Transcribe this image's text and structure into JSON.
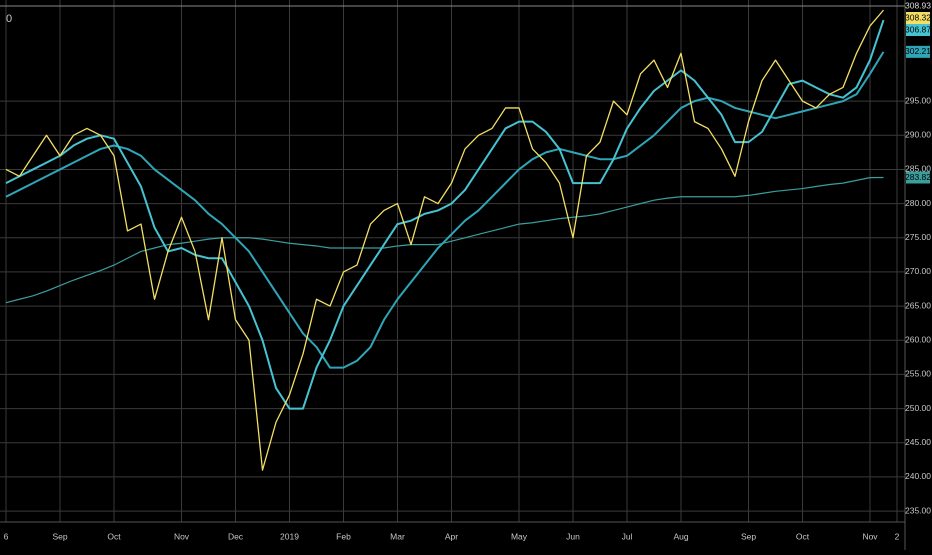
{
  "chart_data": {
    "type": "line",
    "corner_label": "0",
    "background": "#000000",
    "grid": true,
    "grid_color": "#3a3a3a",
    "categories": [
      "6",
      null,
      null,
      null,
      "Sep",
      null,
      null,
      null,
      "Oct",
      null,
      null,
      null,
      null,
      "Nov",
      null,
      null,
      null,
      "Dec",
      null,
      null,
      null,
      "2019",
      null,
      null,
      null,
      "Feb",
      null,
      null,
      null,
      "Mar",
      null,
      null,
      null,
      "Apr",
      null,
      null,
      null,
      null,
      "May",
      null,
      null,
      null,
      "Jun",
      null,
      null,
      null,
      "Jul",
      null,
      null,
      null,
      "Aug",
      null,
      null,
      null,
      null,
      "Sep",
      null,
      null,
      null,
      "Oct",
      null,
      null,
      null,
      null,
      "Nov",
      null,
      "2"
    ],
    "ylim": [
      233.4,
      309.8
    ],
    "yticks": [
      {
        "value": 235,
        "label": "235.00"
      },
      {
        "value": 240,
        "label": "240.00"
      },
      {
        "value": 245,
        "label": "245.00"
      },
      {
        "value": 250,
        "label": "250.00"
      },
      {
        "value": 255,
        "label": "255.00"
      },
      {
        "value": 260,
        "label": "260.00"
      },
      {
        "value": 265,
        "label": "265.00"
      },
      {
        "value": 270,
        "label": "270.00"
      },
      {
        "value": 275,
        "label": "275.00"
      },
      {
        "value": 280,
        "label": "280.00"
      },
      {
        "value": 285,
        "label": "285.00"
      },
      {
        "value": 290,
        "label": "290.00"
      },
      {
        "value": 295,
        "label": "295.00"
      }
    ],
    "series": [
      {
        "color": "#3b9e9c",
        "width": 1.2,
        "values": [
          265.5,
          266,
          266.5,
          267.2,
          268,
          268.8,
          269.5,
          270.2,
          271,
          272,
          273,
          273.5,
          274,
          274.2,
          274.5,
          274.8,
          275,
          275,
          275,
          274.8,
          274.5,
          274.2,
          274,
          273.8,
          273.5,
          273.5,
          273.5,
          273.5,
          273.5,
          273.8,
          274,
          274,
          274,
          274.5,
          275,
          275.5,
          276,
          276.5,
          277,
          277.2,
          277.5,
          277.8,
          278,
          278.2,
          278.5,
          279,
          279.5,
          280,
          280.5,
          280.8,
          281,
          281,
          281,
          281,
          281,
          281.2,
          281.5,
          281.8,
          282,
          282.2,
          282.5,
          282.8,
          283,
          283.4,
          283.8,
          283.82,
          null
        ]
      },
      {
        "color": "#2fa6b8",
        "width": 2,
        "values": [
          281,
          282,
          283,
          284,
          285,
          286,
          287,
          288,
          288.5,
          288,
          287,
          285,
          283.5,
          282,
          280.5,
          278.5,
          277,
          275,
          273,
          270,
          267,
          264,
          261,
          259,
          256,
          256,
          257,
          259,
          263,
          266,
          268.5,
          271,
          273.5,
          275.5,
          277.5,
          279,
          281,
          283,
          285,
          286.5,
          287.5,
          288,
          287.5,
          287,
          286.5,
          286.5,
          287,
          288.5,
          290,
          292,
          294,
          295,
          295.5,
          295,
          294,
          293.5,
          293,
          292.5,
          293,
          293.5,
          294,
          294.5,
          295,
          296,
          299,
          302.21,
          null
        ]
      },
      {
        "color": "#45c3d2",
        "width": 2,
        "values": [
          283,
          284,
          285,
          286,
          287,
          288.5,
          289.5,
          290,
          289.5,
          286,
          282.5,
          276.5,
          273,
          273.5,
          272.5,
          272,
          272,
          268.5,
          265,
          260,
          253,
          250,
          250,
          256,
          260,
          265,
          268,
          271,
          274,
          277,
          277.5,
          278.5,
          279,
          280,
          282,
          285,
          288,
          291,
          292,
          292,
          290.5,
          288,
          283,
          283,
          283,
          286.5,
          291,
          294,
          296.5,
          298,
          299.5,
          298,
          295.5,
          293,
          289,
          289,
          290.5,
          294,
          297.5,
          298,
          297,
          296,
          295.5,
          297,
          301,
          306.87,
          null
        ]
      },
      {
        "color": "#f3df63",
        "width": 1.3,
        "values": [
          285,
          284,
          287,
          290,
          287,
          290,
          291,
          290,
          287,
          276,
          277,
          266,
          273,
          278,
          273,
          263,
          275,
          263,
          260,
          241,
          248,
          252,
          258,
          266,
          265,
          270,
          271,
          277,
          279,
          280,
          274,
          281,
          280,
          283,
          288,
          290,
          291,
          294,
          294,
          288,
          286,
          283,
          275,
          287,
          289,
          295,
          293,
          299,
          301,
          297,
          302,
          292,
          291,
          288,
          284,
          292,
          298,
          301,
          298,
          295,
          294,
          296,
          297,
          302,
          306,
          308.32,
          null
        ]
      }
    ],
    "price_tags": [
      {
        "value": 308.93,
        "label": "308.93",
        "color": "#000000",
        "text_color": "#dddddd"
      },
      {
        "value": 308.32,
        "label": "308.32",
        "color": "#f3df63",
        "text_color": "#000000"
      },
      {
        "value": 306.87,
        "label": "306.87",
        "color": "#45c3d2",
        "text_color": "#000000"
      },
      {
        "value": 302.21,
        "label": "302.21",
        "color": "#2fa6b8",
        "text_color": "#000000"
      },
      {
        "value": 283.82,
        "label": "283.82",
        "color": "#3b9e9c",
        "text_color": "#000000"
      }
    ]
  }
}
